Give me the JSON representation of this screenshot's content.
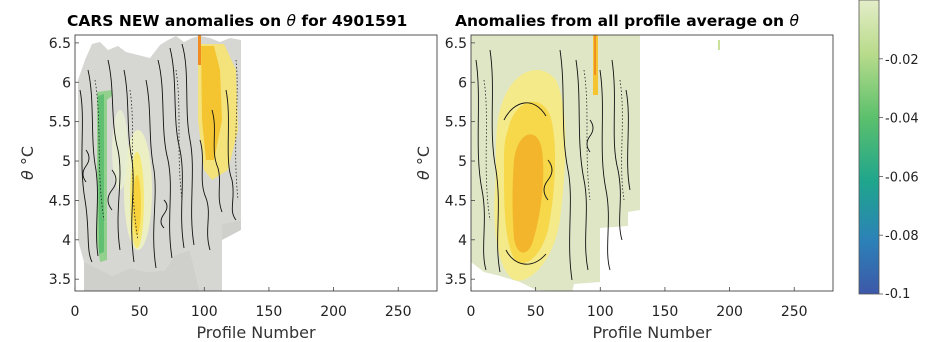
{
  "chart_data": [
    {
      "type": "heatmap",
      "title": "CARS NEW anomalies on θ for 4901591",
      "xlabel": "Profile Number",
      "ylabel": "θ °C",
      "xlim": [
        0,
        280
      ],
      "ylim": [
        3.35,
        6.6
      ],
      "xticks": [
        0,
        50,
        100,
        150,
        200,
        250
      ],
      "yticks": [
        3.5,
        4,
        4.5,
        5,
        5.5,
        6,
        6.5
      ],
      "grid": false,
      "data_extent_profiles": [
        0,
        128
      ],
      "note_values": "filled anomaly field, mostly grey/pale (near 0), warm yellow-orange near profiles 45-55 and 95-108, green near profiles 20-28"
    },
    {
      "type": "heatmap",
      "title": "Anomalies from all profile average on θ",
      "xlabel": "Profile Number",
      "ylabel": "θ °C",
      "xlim": [
        0,
        280
      ],
      "ylim": [
        3.35,
        6.6
      ],
      "xticks": [
        0,
        50,
        100,
        150,
        200,
        250
      ],
      "yticks": [
        3.5,
        4,
        4.5,
        5,
        5.5,
        6,
        6.5
      ],
      "grid": false,
      "data_extent_profiles": [
        0,
        128
      ],
      "note_values": "filled anomaly field, pale green background, strong yellow-orange between profiles 25-60, narrow orange near profile 97"
    }
  ],
  "colorbar": {
    "min": -0.1,
    "max": 0,
    "ticks": [
      {
        "value": -0.02,
        "label": "-0.02"
      },
      {
        "value": -0.04,
        "label": "-0.04"
      },
      {
        "value": -0.06,
        "label": "-0.06"
      },
      {
        "value": -0.08,
        "label": "-0.08"
      },
      {
        "value": -0.1,
        "label": "-0.1"
      }
    ],
    "colors_top_to_bottom": [
      "#e4edc8",
      "#b9dc8c",
      "#5cc06c",
      "#1fa58d",
      "#2c81b8",
      "#3d58a8"
    ]
  },
  "text": {
    "title_left_prefix": "CARS NEW anomalies on ",
    "title_left_symbol": "θ",
    "title_left_suffix": " for 4901591",
    "title_right_prefix": "Anomalies from all profile average on ",
    "title_right_symbol": "θ",
    "ylabel_symbol": "θ",
    "ylabel_unit": " °C",
    "xlabel": "Profile Number"
  }
}
